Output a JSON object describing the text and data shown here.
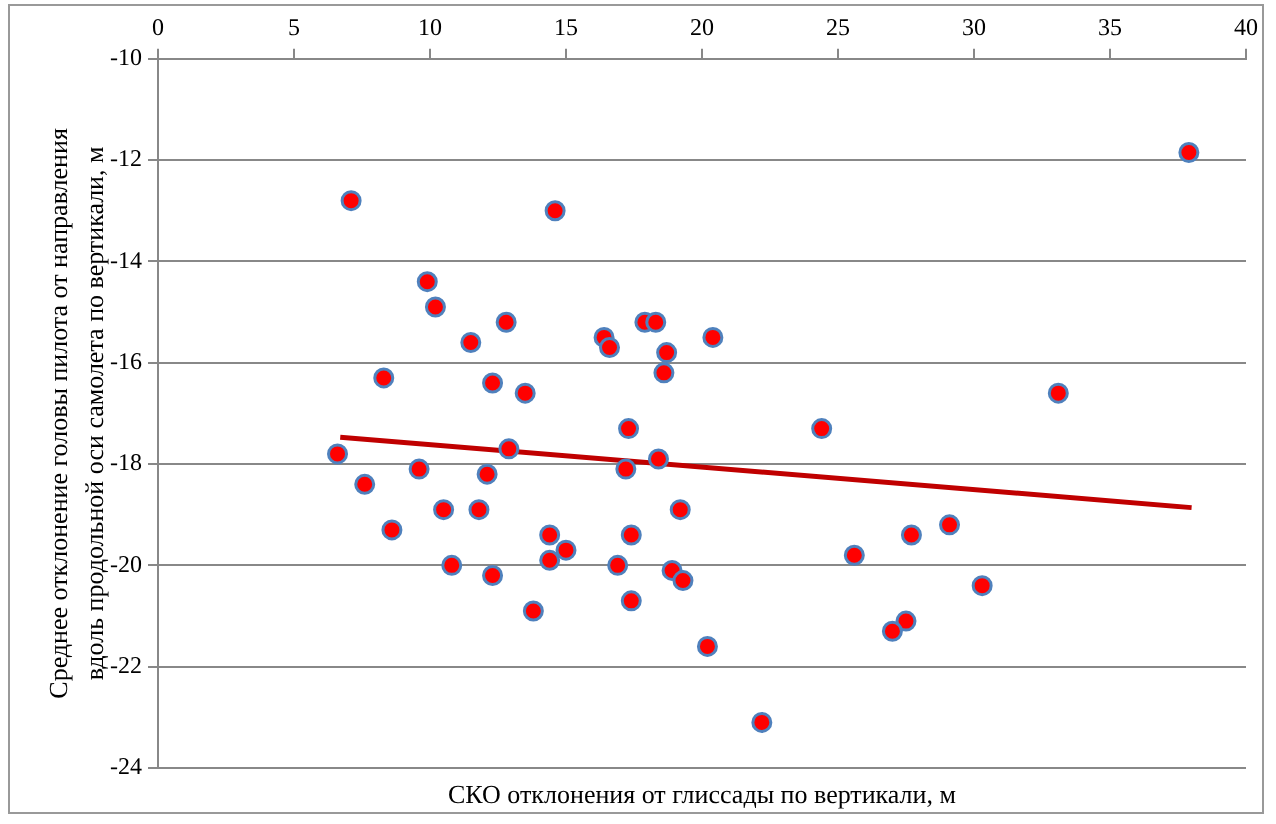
{
  "chart_data": {
    "type": "scatter",
    "xlabel": "СКО отклонения от глиссады по вертикали, м",
    "ylabel": "Среднее отклонение головы пилота от направления вдоль продольной оси самолета по вертикали, м",
    "xlim": [
      0,
      40
    ],
    "xticks": [
      0,
      5,
      10,
      15,
      20,
      25,
      30,
      35,
      40
    ],
    "ylim": [
      -24,
      -10
    ],
    "yticks": [
      -24,
      -22,
      -20,
      -18,
      -16,
      -14,
      -12,
      -10
    ],
    "grid": "y",
    "legend": false,
    "marker": "circle",
    "series": [
      {
        "color": "#ff0000",
        "x": [
          7.1,
          14.6,
          9.9,
          10.2,
          11.5,
          12.8,
          8.3,
          12.3,
          13.5,
          16.4,
          16.6,
          17.9,
          18.3,
          18.7,
          18.6,
          20.4,
          17.3,
          6.6,
          12.9,
          18.4,
          17.2,
          7.6,
          9.6,
          12.1,
          10.5,
          11.8,
          19.2,
          8.6,
          14.4,
          15.0,
          17.4,
          14.4,
          10.8,
          12.3,
          16.9,
          18.9,
          19.3,
          17.4,
          13.8,
          20.2,
          24.4,
          33.1,
          37.9,
          25.6,
          27.7,
          29.1,
          30.3,
          27.5,
          27.0,
          22.2
        ],
        "values": [
          -12.8,
          -13.0,
          -14.4,
          -14.9,
          -15.6,
          -15.2,
          -16.3,
          -16.4,
          -16.6,
          -15.5,
          -15.7,
          -15.2,
          -15.2,
          -15.8,
          -16.2,
          -15.5,
          -17.3,
          -17.8,
          -17.7,
          -17.9,
          -18.1,
          -18.4,
          -18.1,
          -18.2,
          -18.9,
          -18.9,
          -18.9,
          -19.3,
          -19.4,
          -19.7,
          -19.4,
          -19.9,
          -20.0,
          -20.2,
          -20.0,
          -20.1,
          -20.3,
          -20.7,
          -20.9,
          -21.6,
          -17.3,
          -16.6,
          -11.85,
          -19.8,
          -19.4,
          -19.2,
          -20.4,
          -21.1,
          -21.3,
          -23.1
        ]
      },
      {
        "type": "line",
        "color": "#c00000",
        "marker": "none",
        "x": [
          6.7,
          38.0
        ],
        "values": [
          -17.47,
          -18.86
        ]
      }
    ]
  }
}
